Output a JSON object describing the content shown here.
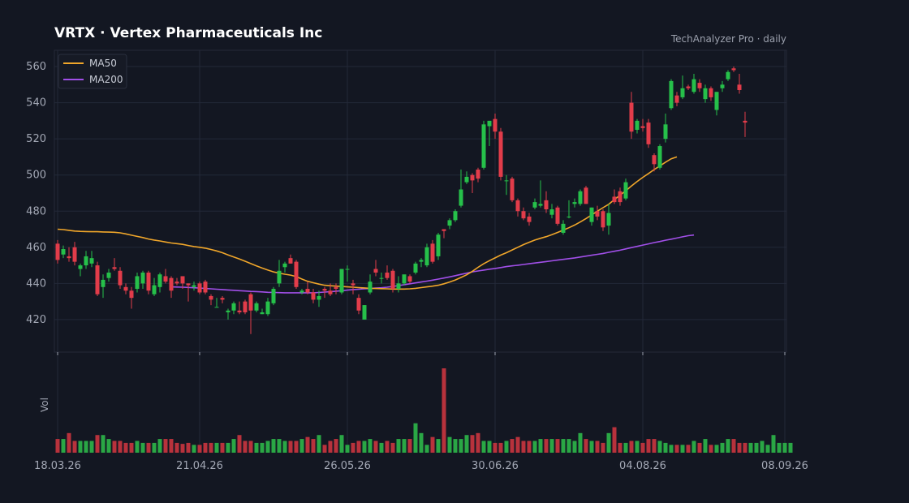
{
  "header": {
    "title": "VRTX  ·  Vertex Pharmaceuticals Inc",
    "source": "TechAnalyzer Pro · daily"
  },
  "colors": {
    "background": "#131722",
    "grid": "#232838",
    "up": "#26c04a",
    "down": "#e23c4a",
    "vol_up": "#2aa745",
    "vol_down": "#b8323c",
    "ma50": "#f0a62a",
    "ma200": "#a14fe8"
  },
  "chart_data": {
    "type": "candlestick",
    "title": "VRTX  ·  Vertex Pharmaceuticals Inc",
    "ylim": [
      402,
      569
    ],
    "yticks": [
      420,
      440,
      460,
      480,
      500,
      520,
      540,
      560
    ],
    "x_tick_labels": [
      "18.03.26",
      "21.04.26",
      "26.05.26",
      "30.06.26",
      "04.08.26",
      "08.09.26"
    ],
    "x_tick_index": [
      0,
      25,
      51,
      77,
      103,
      128
    ],
    "volume_label": "Vol",
    "grid": true,
    "legend": {
      "position": "top-left",
      "entries": [
        "MA50",
        "MA200"
      ]
    },
    "candles": [
      {
        "o": 462,
        "h": 464,
        "l": 451,
        "c": 453
      },
      {
        "o": 456,
        "h": 461,
        "l": 454,
        "c": 459
      },
      {
        "o": 455,
        "h": 460,
        "l": 452,
        "c": 454
      },
      {
        "o": 460,
        "h": 463,
        "l": 450,
        "c": 452
      },
      {
        "o": 448,
        "h": 451,
        "l": 444,
        "c": 450
      },
      {
        "o": 450,
        "h": 458,
        "l": 448,
        "c": 455
      },
      {
        "o": 451,
        "h": 458,
        "l": 449,
        "c": 454
      },
      {
        "o": 450,
        "h": 452,
        "l": 433,
        "c": 434
      },
      {
        "o": 438,
        "h": 445,
        "l": 432,
        "c": 442
      },
      {
        "o": 443,
        "h": 448,
        "l": 441,
        "c": 446
      },
      {
        "o": 449,
        "h": 454,
        "l": 447,
        "c": 448
      },
      {
        "o": 447,
        "h": 449,
        "l": 437,
        "c": 439
      },
      {
        "o": 438,
        "h": 440,
        "l": 434,
        "c": 436
      },
      {
        "o": 436,
        "h": 438,
        "l": 426,
        "c": 432
      },
      {
        "o": 437,
        "h": 446,
        "l": 435,
        "c": 444
      },
      {
        "o": 440,
        "h": 447,
        "l": 437,
        "c": 446
      },
      {
        "o": 446,
        "h": 447,
        "l": 434,
        "c": 436
      },
      {
        "o": 434,
        "h": 443,
        "l": 433,
        "c": 439
      },
      {
        "o": 438,
        "h": 446,
        "l": 435,
        "c": 445
      },
      {
        "o": 444,
        "h": 448,
        "l": 440,
        "c": 441
      },
      {
        "o": 443,
        "h": 444,
        "l": 432,
        "c": 436
      },
      {
        "o": 441,
        "h": 443,
        "l": 439,
        "c": 440
      },
      {
        "o": 444,
        "h": 444,
        "l": 437,
        "c": 440
      },
      {
        "o": 440,
        "h": 440,
        "l": 430,
        "c": 439
      },
      {
        "o": 438,
        "h": 441,
        "l": 436,
        "c": 439
      },
      {
        "o": 440,
        "h": 441,
        "l": 434,
        "c": 435
      },
      {
        "o": 441,
        "h": 442,
        "l": 434,
        "c": 435
      },
      {
        "o": 433,
        "h": 434,
        "l": 428,
        "c": 431
      },
      {
        "o": 427,
        "h": 432,
        "l": 427,
        "c": 427
      },
      {
        "o": 432,
        "h": 433,
        "l": 429,
        "c": 431
      },
      {
        "o": 424,
        "h": 426,
        "l": 420,
        "c": 425
      },
      {
        "o": 425,
        "h": 430,
        "l": 423,
        "c": 429
      },
      {
        "o": 425,
        "h": 430,
        "l": 423,
        "c": 424
      },
      {
        "o": 430,
        "h": 431,
        "l": 423,
        "c": 424
      },
      {
        "o": 434,
        "h": 435,
        "l": 412,
        "c": 425
      },
      {
        "o": 425,
        "h": 430,
        "l": 424,
        "c": 429
      },
      {
        "o": 423,
        "h": 426,
        "l": 423,
        "c": 424
      },
      {
        "o": 423,
        "h": 432,
        "l": 422,
        "c": 430
      },
      {
        "o": 429,
        "h": 438,
        "l": 428,
        "c": 437
      },
      {
        "o": 440,
        "h": 453,
        "l": 438,
        "c": 447
      },
      {
        "o": 449,
        "h": 452,
        "l": 446,
        "c": 451
      },
      {
        "o": 454,
        "h": 456,
        "l": 451,
        "c": 451
      },
      {
        "o": 452,
        "h": 453,
        "l": 437,
        "c": 438
      },
      {
        "o": 435,
        "h": 437,
        "l": 434,
        "c": 436
      },
      {
        "o": 437,
        "h": 441,
        "l": 434,
        "c": 435
      },
      {
        "o": 435,
        "h": 437,
        "l": 429,
        "c": 431
      },
      {
        "o": 431,
        "h": 436,
        "l": 427,
        "c": 433
      },
      {
        "o": 437,
        "h": 438,
        "l": 432,
        "c": 436
      },
      {
        "o": 436,
        "h": 440,
        "l": 433,
        "c": 434
      },
      {
        "o": 438,
        "h": 440,
        "l": 434,
        "c": 437
      },
      {
        "o": 435,
        "h": 448,
        "l": 434,
        "c": 448
      },
      {
        "o": 448,
        "h": 450,
        "l": 441,
        "c": 448
      },
      {
        "o": 440,
        "h": 442,
        "l": 434,
        "c": 439
      },
      {
        "o": 432,
        "h": 434,
        "l": 423,
        "c": 425
      },
      {
        "o": 420,
        "h": 428,
        "l": 420,
        "c": 428
      },
      {
        "o": 435,
        "h": 445,
        "l": 434,
        "c": 441
      },
      {
        "o": 448,
        "h": 453,
        "l": 444,
        "c": 446
      },
      {
        "o": 443,
        "h": 446,
        "l": 440,
        "c": 443
      },
      {
        "o": 446,
        "h": 450,
        "l": 442,
        "c": 443
      },
      {
        "o": 447,
        "h": 448,
        "l": 435,
        "c": 437
      },
      {
        "o": 437,
        "h": 444,
        "l": 435,
        "c": 440
      },
      {
        "o": 440,
        "h": 444,
        "l": 439,
        "c": 445
      },
      {
        "o": 444,
        "h": 445,
        "l": 440,
        "c": 441
      },
      {
        "o": 446,
        "h": 452,
        "l": 445,
        "c": 451
      },
      {
        "o": 452,
        "h": 454,
        "l": 449,
        "c": 453
      },
      {
        "o": 450,
        "h": 462,
        "l": 449,
        "c": 460
      },
      {
        "o": 462,
        "h": 464,
        "l": 451,
        "c": 452
      },
      {
        "o": 455,
        "h": 468,
        "l": 453,
        "c": 467
      },
      {
        "o": 470,
        "h": 470,
        "l": 465,
        "c": 469
      },
      {
        "o": 472,
        "h": 476,
        "l": 470,
        "c": 475
      },
      {
        "o": 475,
        "h": 481,
        "l": 474,
        "c": 480
      },
      {
        "o": 483,
        "h": 503,
        "l": 482,
        "c": 492
      },
      {
        "o": 496,
        "h": 502,
        "l": 495,
        "c": 499
      },
      {
        "o": 500,
        "h": 501,
        "l": 490,
        "c": 497
      },
      {
        "o": 503,
        "h": 504,
        "l": 496,
        "c": 498
      },
      {
        "o": 504,
        "h": 530,
        "l": 503,
        "c": 528
      },
      {
        "o": 527,
        "h": 530,
        "l": 516,
        "c": 530
      },
      {
        "o": 531,
        "h": 534,
        "l": 520,
        "c": 524
      },
      {
        "o": 524,
        "h": 526,
        "l": 497,
        "c": 499
      },
      {
        "o": 497,
        "h": 500,
        "l": 489,
        "c": 497
      },
      {
        "o": 498,
        "h": 499,
        "l": 485,
        "c": 486
      },
      {
        "o": 486,
        "h": 487,
        "l": 477,
        "c": 480
      },
      {
        "o": 480,
        "h": 482,
        "l": 475,
        "c": 476
      },
      {
        "o": 477,
        "h": 479,
        "l": 472,
        "c": 474
      },
      {
        "o": 482,
        "h": 487,
        "l": 481,
        "c": 485
      },
      {
        "o": 483,
        "h": 497,
        "l": 482,
        "c": 484
      },
      {
        "o": 486,
        "h": 491,
        "l": 479,
        "c": 481
      },
      {
        "o": 478,
        "h": 484,
        "l": 476,
        "c": 481
      },
      {
        "o": 482,
        "h": 483,
        "l": 472,
        "c": 473
      },
      {
        "o": 468,
        "h": 475,
        "l": 467,
        "c": 473
      },
      {
        "o": 477,
        "h": 486,
        "l": 476,
        "c": 477
      },
      {
        "o": 484,
        "h": 487,
        "l": 482,
        "c": 485
      },
      {
        "o": 484,
        "h": 492,
        "l": 483,
        "c": 491
      },
      {
        "o": 493,
        "h": 494,
        "l": 484,
        "c": 484
      },
      {
        "o": 474,
        "h": 482,
        "l": 472,
        "c": 482
      },
      {
        "o": 480,
        "h": 483,
        "l": 475,
        "c": 477
      },
      {
        "o": 480,
        "h": 481,
        "l": 469,
        "c": 471
      },
      {
        "o": 472,
        "h": 484,
        "l": 467,
        "c": 479
      },
      {
        "o": 488,
        "h": 492,
        "l": 484,
        "c": 485
      },
      {
        "o": 491,
        "h": 493,
        "l": 483,
        "c": 485
      },
      {
        "o": 487,
        "h": 498,
        "l": 486,
        "c": 496
      },
      {
        "o": 540,
        "h": 546,
        "l": 520,
        "c": 524
      },
      {
        "o": 525,
        "h": 531,
        "l": 523,
        "c": 530
      },
      {
        "o": 527,
        "h": 531,
        "l": 524,
        "c": 526
      },
      {
        "o": 529,
        "h": 531,
        "l": 515,
        "c": 517
      },
      {
        "o": 511,
        "h": 512,
        "l": 502,
        "c": 506
      },
      {
        "o": 504,
        "h": 517,
        "l": 503,
        "c": 516
      },
      {
        "o": 520,
        "h": 534,
        "l": 518,
        "c": 528
      },
      {
        "o": 537,
        "h": 553,
        "l": 536,
        "c": 552
      },
      {
        "o": 544,
        "h": 546,
        "l": 538,
        "c": 540
      },
      {
        "o": 543,
        "h": 555,
        "l": 542,
        "c": 548
      },
      {
        "o": 549,
        "h": 550,
        "l": 547,
        "c": 548
      },
      {
        "o": 546,
        "h": 556,
        "l": 545,
        "c": 553
      },
      {
        "o": 551,
        "h": 553,
        "l": 546,
        "c": 548
      },
      {
        "o": 542,
        "h": 550,
        "l": 540,
        "c": 548
      },
      {
        "o": 548,
        "h": 549,
        "l": 541,
        "c": 543
      },
      {
        "o": 536,
        "h": 546,
        "l": 533,
        "c": 546
      },
      {
        "o": 548,
        "h": 552,
        "l": 546,
        "c": 550
      },
      {
        "o": 553,
        "h": 558,
        "l": 552,
        "c": 557
      },
      {
        "o": 559,
        "h": 560,
        "l": 557,
        "c": 558
      },
      {
        "o": 550,
        "h": 556,
        "l": 545,
        "c": 547
      },
      {
        "o": 530,
        "h": 535,
        "l": 521,
        "c": 529
      }
    ],
    "ma50": [
      470,
      469.8,
      469.4,
      469,
      468.8,
      468.7,
      468.6,
      468.6,
      468.5,
      468.4,
      468.3,
      468,
      467.4,
      466.7,
      466,
      465.4,
      464.6,
      464,
      463.5,
      462.9,
      462.4,
      462,
      461.6,
      461,
      460.4,
      460,
      459.5,
      458.8,
      458,
      457,
      455.8,
      454.6,
      453.5,
      452.3,
      451,
      449.7,
      448.5,
      447.4,
      446.4,
      445.7,
      445.1,
      444.6,
      443.8,
      442.4,
      441.2,
      440.4,
      439.6,
      439,
      438.7,
      438.5,
      438.3,
      438.1,
      437.9,
      437.7,
      437.5,
      437.3,
      437.2,
      437.1,
      437,
      436.9,
      436.9,
      436.9,
      437,
      437.3,
      437.7,
      438.1,
      438.5,
      439,
      439.8,
      440.8,
      441.9,
      443.3,
      444.8,
      446.7,
      448.9,
      450.9,
      452.6,
      454.1,
      455.7,
      457,
      458.5,
      460,
      461.5,
      462.8,
      464,
      465,
      465.9,
      467,
      468.2,
      469.5,
      470.8,
      472.3,
      474,
      475.9,
      477.9,
      480,
      481.9,
      483.8,
      486.4,
      488.8,
      491.3,
      493.9,
      496.4,
      498.7,
      500.8,
      503,
      505,
      507.1,
      509,
      510
    ],
    "ma200_start": 20,
    "ma200": [
      438.1,
      438,
      437.9,
      437.8,
      437.6,
      437.4,
      437.2,
      437,
      436.8,
      436.6,
      436.4,
      436.2,
      436,
      435.8,
      435.6,
      435.5,
      435.3,
      435.1,
      435,
      434.9,
      434.8,
      434.8,
      434.8,
      434.8,
      434.8,
      434.8,
      435,
      435.2,
      435.4,
      435.7,
      436,
      436.3,
      436.6,
      436.8,
      437,
      437.2,
      437.4,
      437.6,
      437.9,
      438.3,
      438.8,
      439.3,
      439.8,
      440.3,
      440.8,
      441.3,
      441.8,
      442.4,
      443,
      443.6,
      444.3,
      445,
      445.7,
      446.4,
      446.9,
      447.4,
      447.9,
      448.3,
      448.8,
      449.3,
      449.7,
      450.1,
      450.5,
      450.9,
      451.3,
      451.7,
      452.1,
      452.5,
      452.9,
      453.3,
      453.7,
      454.1,
      454.6,
      455.1,
      455.6,
      456.1,
      456.6,
      457.2,
      457.8,
      458.4,
      459.1,
      459.8,
      460.5,
      461.2,
      461.9,
      462.6,
      463.2,
      463.9,
      464.5,
      465.1,
      465.8,
      466.4,
      466.8
    ],
    "volume": [
      14,
      14,
      20,
      12,
      12,
      12,
      12,
      18,
      18,
      14,
      12,
      12,
      10,
      10,
      12,
      10,
      10,
      10,
      14,
      14,
      14,
      10,
      9,
      10,
      8,
      8,
      10,
      10,
      10,
      10,
      10,
      14,
      18,
      12,
      12,
      10,
      10,
      12,
      14,
      14,
      12,
      12,
      12,
      14,
      16,
      14,
      18,
      8,
      12,
      14,
      18,
      8,
      10,
      12,
      12,
      14,
      12,
      10,
      12,
      10,
      14,
      14,
      14,
      30,
      20,
      8,
      16,
      14,
      86,
      16,
      14,
      14,
      18,
      18,
      20,
      12,
      12,
      10,
      10,
      12,
      14,
      16,
      12,
      12,
      12,
      14,
      14,
      14,
      14,
      14,
      14,
      12,
      20,
      14,
      12,
      12,
      10,
      20,
      26,
      10,
      10,
      12,
      12,
      10,
      14,
      14,
      12,
      10,
      8,
      8,
      8,
      8,
      12,
      10,
      14,
      8,
      8,
      10,
      14,
      14,
      10,
      10,
      10,
      10,
      12,
      8,
      18,
      10,
      10,
      10
    ]
  }
}
